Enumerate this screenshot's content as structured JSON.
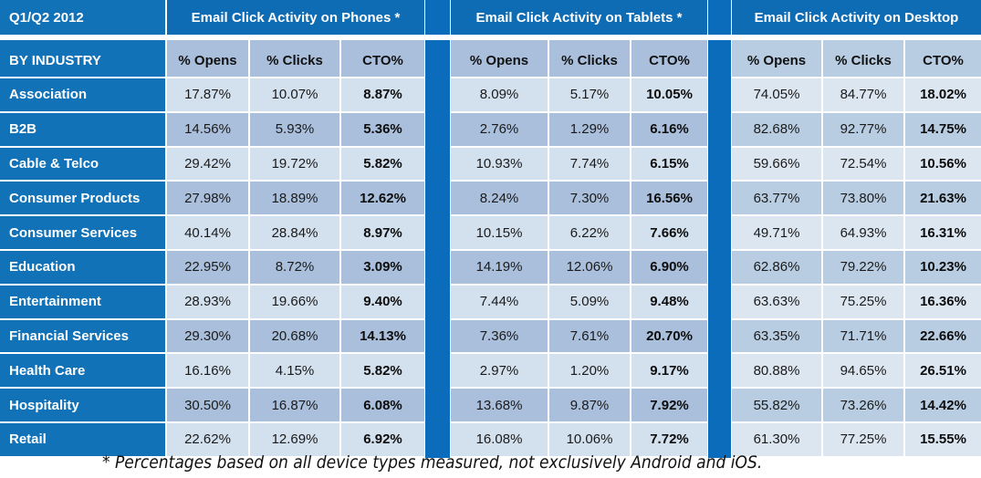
{
  "header": {
    "period": "Q1/Q2 2012",
    "groups": [
      {
        "title": "Email Click Activity on Phones *"
      },
      {
        "title": "Email Click Activity on Tablets *"
      },
      {
        "title": "Email Click Activity on Desktop"
      }
    ]
  },
  "subheader": {
    "label": "BY INDUSTRY",
    "columns": [
      "% Opens",
      "% Clicks",
      "CTO%"
    ]
  },
  "rows": [
    {
      "industry": "Association",
      "phones": [
        "17.87%",
        "10.07%",
        "8.87%"
      ],
      "tablets": [
        "8.09%",
        "5.17%",
        "10.05%"
      ],
      "desktop": [
        "74.05%",
        "84.77%",
        "18.02%"
      ]
    },
    {
      "industry": "B2B",
      "phones": [
        "14.56%",
        "5.93%",
        "5.36%"
      ],
      "tablets": [
        "2.76%",
        "1.29%",
        "6.16%"
      ],
      "desktop": [
        "82.68%",
        "92.77%",
        "14.75%"
      ]
    },
    {
      "industry": "Cable & Telco",
      "phones": [
        "29.42%",
        "19.72%",
        "5.82%"
      ],
      "tablets": [
        "10.93%",
        "7.74%",
        "6.15%"
      ],
      "desktop": [
        "59.66%",
        "72.54%",
        "10.56%"
      ]
    },
    {
      "industry": "Consumer Products",
      "phones": [
        "27.98%",
        "18.89%",
        "12.62%"
      ],
      "tablets": [
        "8.24%",
        "7.30%",
        "16.56%"
      ],
      "desktop": [
        "63.77%",
        "73.80%",
        "21.63%"
      ]
    },
    {
      "industry": "Consumer Services",
      "phones": [
        "40.14%",
        "28.84%",
        "8.97%"
      ],
      "tablets": [
        "10.15%",
        "6.22%",
        "7.66%"
      ],
      "desktop": [
        "49.71%",
        "64.93%",
        "16.31%"
      ]
    },
    {
      "industry": "Education",
      "phones": [
        "22.95%",
        "8.72%",
        "3.09%"
      ],
      "tablets": [
        "14.19%",
        "12.06%",
        "6.90%"
      ],
      "desktop": [
        "62.86%",
        "79.22%",
        "10.23%"
      ]
    },
    {
      "industry": "Entertainment",
      "phones": [
        "28.93%",
        "19.66%",
        "9.40%"
      ],
      "tablets": [
        "7.44%",
        "5.09%",
        "9.48%"
      ],
      "desktop": [
        "63.63%",
        "75.25%",
        "16.36%"
      ]
    },
    {
      "industry": "Financial Services",
      "phones": [
        "29.30%",
        "20.68%",
        "14.13%"
      ],
      "tablets": [
        "7.36%",
        "7.61%",
        "20.70%"
      ],
      "desktop": [
        "63.35%",
        "71.71%",
        "22.66%"
      ]
    },
    {
      "industry": "Health Care",
      "phones": [
        "16.16%",
        "4.15%",
        "5.82%"
      ],
      "tablets": [
        "2.97%",
        "1.20%",
        "9.17%"
      ],
      "desktop": [
        "80.88%",
        "94.65%",
        "26.51%"
      ]
    },
    {
      "industry": "Hospitality",
      "phones": [
        "30.50%",
        "16.87%",
        "6.08%"
      ],
      "tablets": [
        "13.68%",
        "9.87%",
        "7.92%"
      ],
      "desktop": [
        "55.82%",
        "73.26%",
        "14.42%"
      ]
    },
    {
      "industry": "Retail",
      "phones": [
        "22.62%",
        "12.69%",
        "6.92%"
      ],
      "tablets": [
        "16.08%",
        "10.06%",
        "7.72%"
      ],
      "desktop": [
        "61.30%",
        "77.25%",
        "15.55%"
      ]
    }
  ],
  "footnote": "* Percentages based on all device types measured, not exclusively Android and iOS.",
  "colors": {
    "header_blue": "#0e6cb5",
    "label_blue": "#1272b8",
    "cell_dark": "#a9bfdc",
    "cell_light": "#d3e0ee",
    "desktop_dark": "#b8cde2",
    "desktop_light": "#dce6f1"
  }
}
